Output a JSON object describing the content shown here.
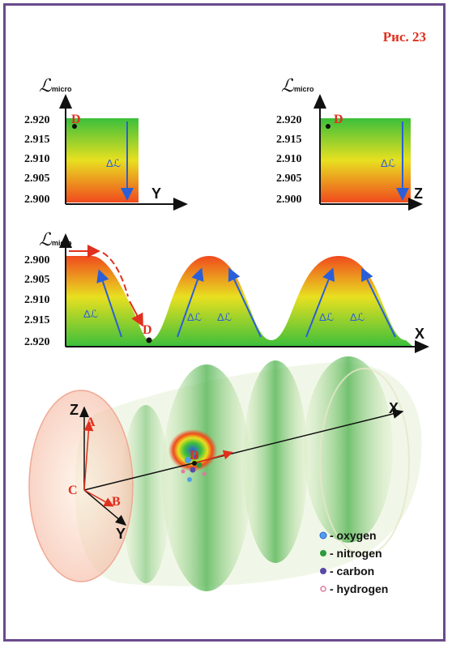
{
  "figure_label": "Рис. 23",
  "axis_symbol": "ℒ",
  "axis_subscript": "micro",
  "delta_label": "Δℒ",
  "top_panels": {
    "ticks": [
      "2.920",
      "2.915",
      "2.910",
      "2.905",
      "2.900"
    ],
    "left_axis": "Y",
    "right_axis": "Z",
    "point": "D"
  },
  "middle_panel": {
    "ticks": [
      "2.900",
      "2.905",
      "2.910",
      "2.915",
      "2.920"
    ],
    "axis": "X",
    "point": "D"
  },
  "scene": {
    "axes": {
      "x": "X",
      "y": "Y",
      "z": "Z"
    },
    "points": {
      "a": "A",
      "b": "B",
      "c": "C",
      "d": "D"
    }
  },
  "legend": [
    {
      "label": "- oxygen",
      "color": "#4fa0e8"
    },
    {
      "label": "- nitrogen",
      "color": "#2e9a3a"
    },
    {
      "label": "- carbon",
      "color": "#5a4aa8"
    },
    {
      "label": "- hydrogen",
      "color": "#e07aa0"
    }
  ],
  "colors": {
    "accent": "#e0301e",
    "arrow": "#2a5fd8",
    "gradient_top": "#3bbf3b",
    "gradient_bottom": "#f04a1e",
    "frame": "#6a4a8c"
  }
}
